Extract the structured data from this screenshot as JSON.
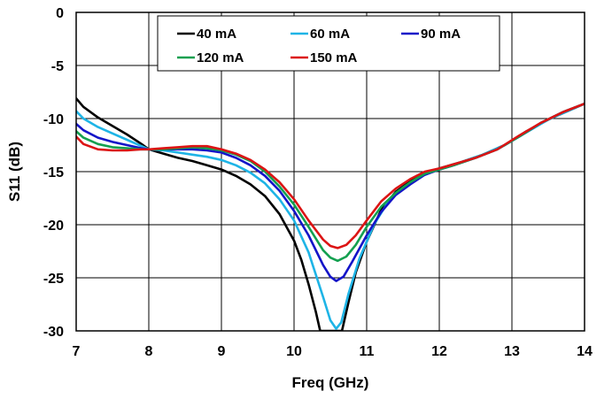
{
  "chart_data": {
    "type": "line",
    "title": "",
    "xlabel": "Freq (GHz)",
    "ylabel": "S11 (dB)",
    "xlim": [
      7,
      14
    ],
    "ylim": [
      -30,
      0
    ],
    "xticks": [
      "7",
      "8",
      "9",
      "10",
      "11",
      "12",
      "13",
      "14"
    ],
    "yticks": [
      "0",
      "-5",
      "-10",
      "-15",
      "-20",
      "-25",
      "-30"
    ],
    "grid": true,
    "legend_position": "top-center",
    "series": [
      {
        "name": "40 mA",
        "color": "#000000",
        "points": [
          [
            7.0,
            -8.1
          ],
          [
            7.1,
            -8.9
          ],
          [
            7.3,
            -9.9
          ],
          [
            7.5,
            -10.7
          ],
          [
            7.7,
            -11.5
          ],
          [
            7.9,
            -12.4
          ],
          [
            8.0,
            -12.9
          ],
          [
            8.2,
            -13.3
          ],
          [
            8.4,
            -13.7
          ],
          [
            8.6,
            -14.0
          ],
          [
            8.8,
            -14.4
          ],
          [
            9.0,
            -14.8
          ],
          [
            9.2,
            -15.4
          ],
          [
            9.4,
            -16.2
          ],
          [
            9.6,
            -17.3
          ],
          [
            9.8,
            -19.0
          ],
          [
            10.0,
            -21.5
          ],
          [
            10.1,
            -23.3
          ],
          [
            10.2,
            -25.6
          ],
          [
            10.3,
            -28.2
          ],
          [
            10.36,
            -30.0
          ],
          [
            10.66,
            -30.0
          ],
          [
            10.75,
            -27.3
          ],
          [
            10.85,
            -24.5
          ],
          [
            11.0,
            -21.6
          ],
          [
            11.2,
            -18.6
          ],
          [
            11.4,
            -16.9
          ],
          [
            11.6,
            -15.9
          ],
          [
            11.8,
            -15.1
          ],
          [
            12.0,
            -14.7
          ],
          [
            12.3,
            -14.1
          ],
          [
            12.6,
            -13.4
          ],
          [
            12.9,
            -12.5
          ],
          [
            13.2,
            -11.2
          ],
          [
            13.5,
            -10.1
          ],
          [
            13.8,
            -9.2
          ],
          [
            14.0,
            -8.6
          ]
        ]
      },
      {
        "name": "60 mA",
        "color": "#1eb4e6",
        "points": [
          [
            7.0,
            -9.3
          ],
          [
            7.1,
            -10.0
          ],
          [
            7.3,
            -10.8
          ],
          [
            7.5,
            -11.4
          ],
          [
            7.7,
            -12.0
          ],
          [
            7.9,
            -12.6
          ],
          [
            8.0,
            -12.9
          ],
          [
            8.2,
            -13.0
          ],
          [
            8.4,
            -13.2
          ],
          [
            8.6,
            -13.4
          ],
          [
            8.8,
            -13.6
          ],
          [
            9.0,
            -13.9
          ],
          [
            9.2,
            -14.4
          ],
          [
            9.4,
            -15.1
          ],
          [
            9.6,
            -16.1
          ],
          [
            9.8,
            -17.6
          ],
          [
            10.0,
            -19.6
          ],
          [
            10.2,
            -22.6
          ],
          [
            10.4,
            -26.8
          ],
          [
            10.5,
            -29.0
          ],
          [
            10.58,
            -29.8
          ],
          [
            10.65,
            -29.2
          ],
          [
            10.75,
            -26.5
          ],
          [
            10.9,
            -23.2
          ],
          [
            11.1,
            -20.0
          ],
          [
            11.3,
            -17.8
          ],
          [
            11.5,
            -16.5
          ],
          [
            11.7,
            -15.6
          ],
          [
            11.9,
            -15.0
          ],
          [
            12.1,
            -14.6
          ],
          [
            12.3,
            -14.1
          ],
          [
            12.6,
            -13.4
          ],
          [
            12.9,
            -12.5
          ],
          [
            13.2,
            -11.3
          ],
          [
            13.5,
            -10.1
          ],
          [
            13.8,
            -9.2
          ],
          [
            14.0,
            -8.6
          ]
        ]
      },
      {
        "name": "90 mA",
        "color": "#1414c8",
        "points": [
          [
            7.0,
            -10.5
          ],
          [
            7.1,
            -11.1
          ],
          [
            7.3,
            -11.8
          ],
          [
            7.5,
            -12.2
          ],
          [
            7.7,
            -12.5
          ],
          [
            7.9,
            -12.8
          ],
          [
            8.0,
            -12.9
          ],
          [
            8.2,
            -12.9
          ],
          [
            8.4,
            -12.9
          ],
          [
            8.6,
            -12.9
          ],
          [
            8.8,
            -13.0
          ],
          [
            9.0,
            -13.2
          ],
          [
            9.2,
            -13.7
          ],
          [
            9.4,
            -14.4
          ],
          [
            9.6,
            -15.4
          ],
          [
            9.8,
            -16.8
          ],
          [
            10.0,
            -18.7
          ],
          [
            10.2,
            -21.0
          ],
          [
            10.4,
            -23.8
          ],
          [
            10.5,
            -24.9
          ],
          [
            10.58,
            -25.3
          ],
          [
            10.68,
            -24.9
          ],
          [
            10.8,
            -23.5
          ],
          [
            11.0,
            -21.0
          ],
          [
            11.2,
            -18.8
          ],
          [
            11.4,
            -17.2
          ],
          [
            11.6,
            -16.2
          ],
          [
            11.8,
            -15.3
          ],
          [
            12.0,
            -14.8
          ],
          [
            12.2,
            -14.4
          ],
          [
            12.5,
            -13.7
          ],
          [
            12.8,
            -12.9
          ],
          [
            13.1,
            -11.7
          ],
          [
            13.4,
            -10.4
          ],
          [
            13.7,
            -9.4
          ],
          [
            14.0,
            -8.6
          ]
        ]
      },
      {
        "name": "120 mA",
        "color": "#14a050",
        "points": [
          [
            7.0,
            -11.2
          ],
          [
            7.1,
            -11.8
          ],
          [
            7.3,
            -12.4
          ],
          [
            7.5,
            -12.7
          ],
          [
            7.7,
            -12.8
          ],
          [
            7.9,
            -12.9
          ],
          [
            8.0,
            -12.9
          ],
          [
            8.2,
            -12.9
          ],
          [
            8.4,
            -12.8
          ],
          [
            8.6,
            -12.7
          ],
          [
            8.8,
            -12.8
          ],
          [
            9.0,
            -13.0
          ],
          [
            9.2,
            -13.4
          ],
          [
            9.4,
            -14.0
          ],
          [
            9.6,
            -15.0
          ],
          [
            9.8,
            -16.4
          ],
          [
            10.0,
            -18.1
          ],
          [
            10.2,
            -20.2
          ],
          [
            10.4,
            -22.4
          ],
          [
            10.5,
            -23.1
          ],
          [
            10.6,
            -23.4
          ],
          [
            10.72,
            -23.0
          ],
          [
            10.85,
            -21.9
          ],
          [
            11.0,
            -20.2
          ],
          [
            11.2,
            -18.3
          ],
          [
            11.4,
            -17.0
          ],
          [
            11.6,
            -16.0
          ],
          [
            11.8,
            -15.2
          ],
          [
            12.0,
            -14.8
          ],
          [
            12.2,
            -14.4
          ],
          [
            12.5,
            -13.7
          ],
          [
            12.8,
            -12.9
          ],
          [
            13.1,
            -11.7
          ],
          [
            13.4,
            -10.4
          ],
          [
            13.7,
            -9.4
          ],
          [
            14.0,
            -8.6
          ]
        ]
      },
      {
        "name": "150 mA",
        "color": "#dc1414",
        "points": [
          [
            7.0,
            -11.7
          ],
          [
            7.1,
            -12.4
          ],
          [
            7.3,
            -12.9
          ],
          [
            7.5,
            -13.0
          ],
          [
            7.7,
            -13.0
          ],
          [
            7.9,
            -12.9
          ],
          [
            8.0,
            -12.9
          ],
          [
            8.2,
            -12.8
          ],
          [
            8.4,
            -12.7
          ],
          [
            8.6,
            -12.6
          ],
          [
            8.8,
            -12.6
          ],
          [
            9.0,
            -12.9
          ],
          [
            9.2,
            -13.3
          ],
          [
            9.4,
            -13.9
          ],
          [
            9.6,
            -14.8
          ],
          [
            9.8,
            -16.0
          ],
          [
            10.0,
            -17.6
          ],
          [
            10.2,
            -19.6
          ],
          [
            10.4,
            -21.4
          ],
          [
            10.5,
            -22.0
          ],
          [
            10.6,
            -22.2
          ],
          [
            10.72,
            -21.9
          ],
          [
            10.85,
            -21.0
          ],
          [
            11.0,
            -19.6
          ],
          [
            11.2,
            -17.8
          ],
          [
            11.4,
            -16.6
          ],
          [
            11.6,
            -15.7
          ],
          [
            11.8,
            -15.0
          ],
          [
            12.0,
            -14.7
          ],
          [
            12.2,
            -14.3
          ],
          [
            12.5,
            -13.7
          ],
          [
            12.8,
            -12.9
          ],
          [
            13.1,
            -11.6
          ],
          [
            13.4,
            -10.4
          ],
          [
            13.7,
            -9.4
          ],
          [
            14.0,
            -8.6
          ]
        ]
      }
    ]
  }
}
